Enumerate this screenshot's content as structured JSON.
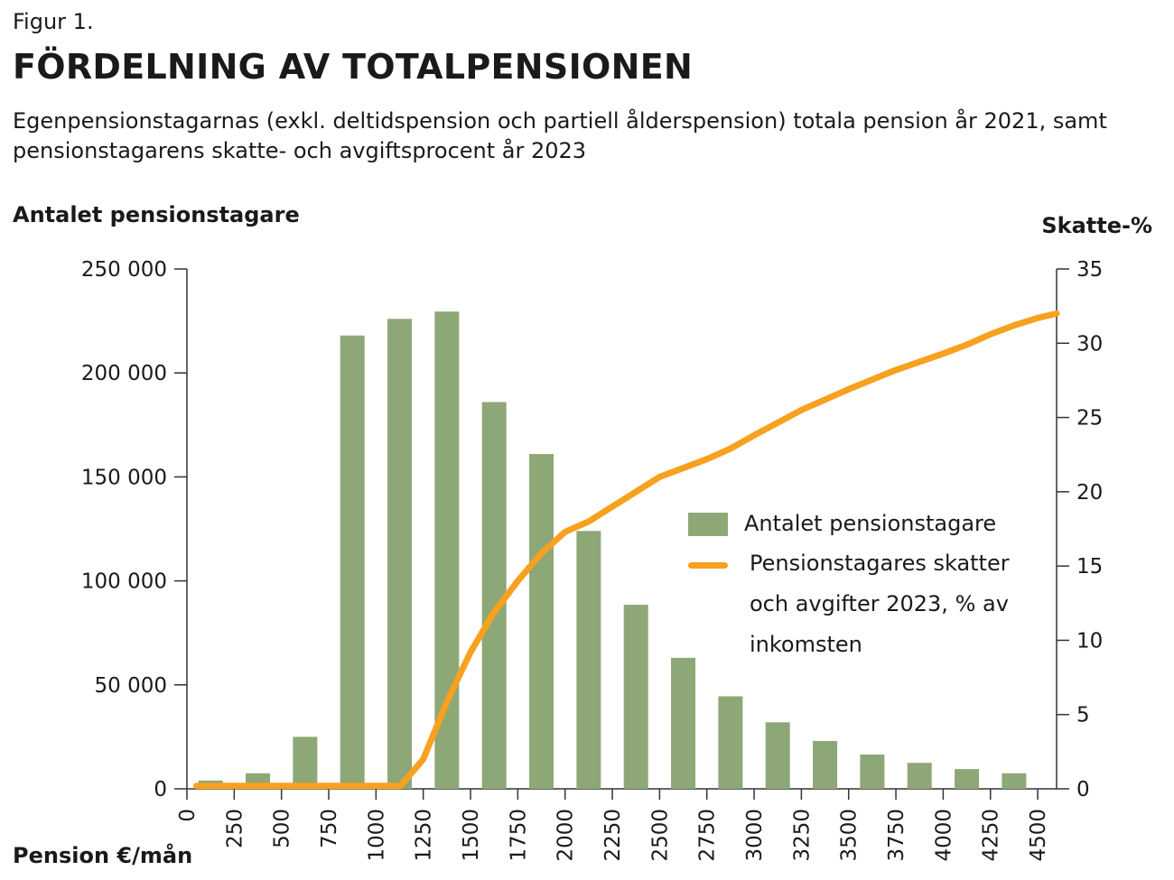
{
  "figure_label": "Figur 1.",
  "title": "FÖRDELNING AV TOTALPENSIONEN",
  "subtitle": "Egenpensionstagarnas (exkl. deltidspension och partiell ålderspension) totala pension år 2021, samt pensionstagarens skatte- och avgiftsprocent år 2023",
  "colors": {
    "bars": "#8ea776",
    "line": "#f7a11f",
    "axis": "#333333"
  },
  "chart_data": {
    "type": "bar",
    "ylabel": "Antalet pensionstagare",
    "y2label": "Skatte-%",
    "xlabel": "Pension €/mån",
    "ylim": [
      0,
      250000
    ],
    "y2lim": [
      0,
      35
    ],
    "xlim": [
      0,
      4600
    ],
    "yticks": [
      0,
      50000,
      100000,
      150000,
      200000,
      250000
    ],
    "ytick_labels": [
      "0",
      "50 000",
      "100 000",
      "150 000",
      "200 000",
      "250 000"
    ],
    "y2ticks": [
      0,
      5,
      10,
      15,
      20,
      25,
      30,
      35
    ],
    "y2tick_labels": [
      "0",
      "5",
      "10",
      "15",
      "20",
      "25",
      "30",
      "35"
    ],
    "xticks": [
      0,
      250,
      500,
      750,
      1000,
      1250,
      1500,
      1750,
      2000,
      2250,
      2500,
      2750,
      3000,
      3250,
      3500,
      3750,
      4000,
      4250,
      4500
    ],
    "xtick_labels": [
      "0",
      "250",
      "500",
      "750",
      "1000",
      "1250",
      "1500",
      "1750",
      "2000",
      "2250",
      "2500",
      "2750",
      "3000",
      "3250",
      "3500",
      "3750",
      "4000",
      "4250",
      "4500"
    ],
    "legend_position": "center-right",
    "series": [
      {
        "name": "Antalet pensionstagare",
        "kind": "bar",
        "x": [
          125,
          375,
          625,
          875,
          1125,
          1375,
          1625,
          1875,
          2125,
          2375,
          2625,
          2875,
          3125,
          3375,
          3625,
          3875,
          4125,
          4375
        ],
        "values": [
          4000,
          7500,
          25000,
          218000,
          226000,
          229500,
          186000,
          161000,
          124000,
          88500,
          63000,
          44500,
          32000,
          23000,
          16500,
          12500,
          9500,
          7500
        ]
      },
      {
        "name": "Pensionstagares skatter och avgifter 2023, % av inkomsten",
        "kind": "line",
        "x": [
          50,
          500,
          1000,
          1130,
          1250,
          1380,
          1500,
          1620,
          1750,
          1870,
          2000,
          2125,
          2250,
          2375,
          2500,
          2750,
          2875,
          3000,
          3250,
          3500,
          3750,
          4000,
          4125,
          4250,
          4375,
          4500,
          4600
        ],
        "values": [
          0.2,
          0.2,
          0.2,
          0.2,
          2.0,
          6.0,
          9.2,
          11.8,
          14.0,
          15.8,
          17.3,
          18.0,
          19.0,
          20.0,
          21.0,
          22.2,
          22.9,
          23.8,
          25.5,
          26.9,
          28.2,
          29.3,
          29.9,
          30.6,
          31.2,
          31.7,
          32.0
        ]
      }
    ]
  }
}
